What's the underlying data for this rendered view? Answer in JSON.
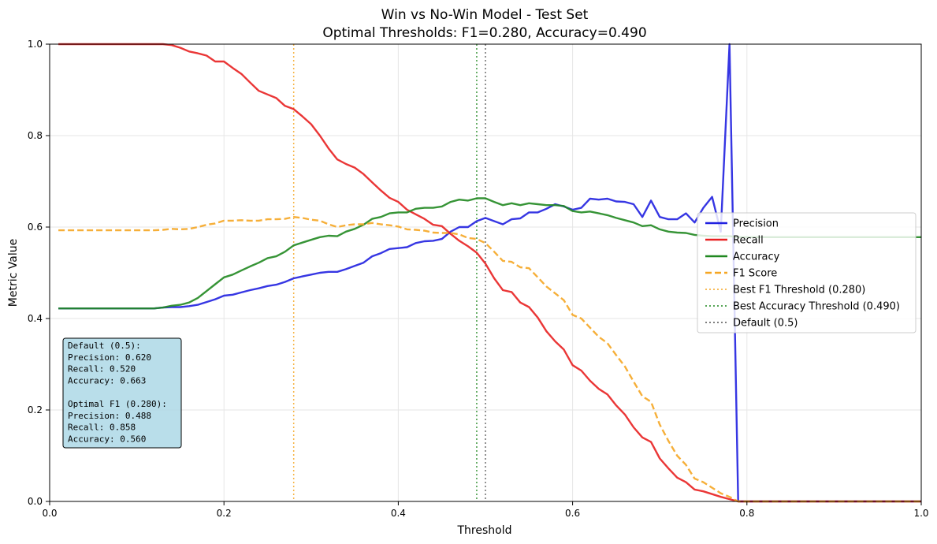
{
  "chart_data": {
    "type": "line",
    "title": "Win vs No-Win Model - Test Set",
    "subtitle": "Optimal Thresholds: F1=0.280, Accuracy=0.490",
    "xlabel": "Threshold",
    "ylabel": "Metric Value",
    "xlim": [
      0.0,
      1.0
    ],
    "ylim": [
      0.0,
      1.0
    ],
    "xticks": [
      "0.0",
      "0.2",
      "0.4",
      "0.6",
      "0.8",
      "1.0"
    ],
    "yticks": [
      "0.0",
      "0.2",
      "0.4",
      "0.6",
      "0.8",
      "1.0"
    ],
    "grid": true,
    "legend_position": "center-right",
    "x": [
      0.01,
      0.02,
      0.03,
      0.04,
      0.05,
      0.06,
      0.07,
      0.08,
      0.09,
      0.1,
      0.11,
      0.12,
      0.13,
      0.14,
      0.15,
      0.16,
      0.17,
      0.18,
      0.19,
      0.2,
      0.21,
      0.22,
      0.23,
      0.24,
      0.25,
      0.26,
      0.27,
      0.28,
      0.29,
      0.3,
      0.31,
      0.32,
      0.33,
      0.34,
      0.35,
      0.36,
      0.37,
      0.38,
      0.39,
      0.4,
      0.41,
      0.42,
      0.43,
      0.44,
      0.45,
      0.46,
      0.47,
      0.48,
      0.49,
      0.5,
      0.51,
      0.52,
      0.53,
      0.54,
      0.55,
      0.56,
      0.57,
      0.58,
      0.59,
      0.6,
      0.61,
      0.62,
      0.63,
      0.64,
      0.65,
      0.66,
      0.67,
      0.68,
      0.69,
      0.7,
      0.71,
      0.72,
      0.73,
      0.74,
      0.75,
      0.76,
      0.77,
      0.78,
      0.79,
      0.8,
      0.81,
      0.82,
      0.83,
      0.84,
      0.85,
      0.86,
      0.87,
      0.88,
      0.89,
      0.9,
      0.91,
      0.92,
      0.93,
      0.94,
      0.95,
      0.96,
      0.97,
      0.98,
      0.99
    ],
    "series": [
      {
        "name": "Precision",
        "color": "#2020e0",
        "style": "solid",
        "values": [
          0.422,
          0.422,
          0.422,
          0.422,
          0.422,
          0.422,
          0.422,
          0.422,
          0.422,
          0.422,
          0.422,
          0.422,
          0.424,
          0.425,
          0.425,
          0.427,
          0.43,
          0.436,
          0.442,
          0.45,
          0.452,
          0.457,
          0.462,
          0.466,
          0.471,
          0.474,
          0.48,
          0.488,
          0.492,
          0.496,
          0.5,
          0.502,
          0.502,
          0.508,
          0.515,
          0.522,
          0.536,
          0.543,
          0.552,
          0.554,
          0.556,
          0.565,
          0.569,
          0.57,
          0.574,
          0.59,
          0.6,
          0.6,
          0.613,
          0.62,
          0.613,
          0.606,
          0.617,
          0.619,
          0.632,
          0.632,
          0.64,
          0.65,
          0.645,
          0.638,
          0.642,
          0.662,
          0.66,
          0.662,
          0.656,
          0.655,
          0.65,
          0.622,
          0.658,
          0.622,
          0.617,
          0.617,
          0.63,
          0.61,
          0.642,
          0.666,
          0.59,
          1.0,
          0.0,
          0.0,
          0.0,
          0.0,
          0.0,
          0.0,
          0.0,
          0.0,
          0.0,
          0.0,
          0.0,
          0.0,
          0.0,
          0.0,
          0.0,
          0.0,
          0.0,
          0.0,
          0.0,
          0.0,
          0.0
        ]
      },
      {
        "name": "Recall",
        "color": "#e82020",
        "style": "solid",
        "values": [
          1.0,
          1.0,
          1.0,
          1.0,
          1.0,
          1.0,
          1.0,
          1.0,
          1.0,
          1.0,
          1.0,
          1.0,
          1.0,
          0.998,
          0.992,
          0.984,
          0.98,
          0.975,
          0.962,
          0.962,
          0.948,
          0.935,
          0.916,
          0.898,
          0.89,
          0.882,
          0.865,
          0.858,
          0.842,
          0.825,
          0.8,
          0.772,
          0.748,
          0.738,
          0.73,
          0.716,
          0.698,
          0.68,
          0.664,
          0.655,
          0.638,
          0.628,
          0.618,
          0.605,
          0.602,
          0.585,
          0.57,
          0.558,
          0.544,
          0.52,
          0.488,
          0.462,
          0.458,
          0.435,
          0.425,
          0.402,
          0.372,
          0.35,
          0.332,
          0.298,
          0.286,
          0.264,
          0.246,
          0.234,
          0.21,
          0.19,
          0.162,
          0.14,
          0.13,
          0.094,
          0.072,
          0.052,
          0.042,
          0.026,
          0.022,
          0.016,
          0.01,
          0.005,
          0.0,
          0.0,
          0.0,
          0.0,
          0.0,
          0.0,
          0.0,
          0.0,
          0.0,
          0.0,
          0.0,
          0.0,
          0.0,
          0.0,
          0.0,
          0.0,
          0.0,
          0.0,
          0.0,
          0.0,
          0.0
        ]
      },
      {
        "name": "Accuracy",
        "color": "#208820",
        "style": "solid",
        "values": [
          0.422,
          0.422,
          0.422,
          0.422,
          0.422,
          0.422,
          0.422,
          0.422,
          0.422,
          0.422,
          0.422,
          0.422,
          0.424,
          0.428,
          0.43,
          0.435,
          0.445,
          0.46,
          0.475,
          0.49,
          0.496,
          0.505,
          0.514,
          0.522,
          0.532,
          0.536,
          0.546,
          0.56,
          0.566,
          0.572,
          0.578,
          0.581,
          0.58,
          0.59,
          0.596,
          0.605,
          0.618,
          0.622,
          0.63,
          0.632,
          0.632,
          0.64,
          0.642,
          0.642,
          0.645,
          0.655,
          0.66,
          0.658,
          0.663,
          0.663,
          0.655,
          0.648,
          0.652,
          0.648,
          0.652,
          0.65,
          0.648,
          0.648,
          0.646,
          0.635,
          0.632,
          0.634,
          0.63,
          0.626,
          0.62,
          0.615,
          0.61,
          0.602,
          0.604,
          0.595,
          0.59,
          0.588,
          0.587,
          0.583,
          0.581,
          0.58,
          0.58,
          0.58,
          0.578,
          0.578,
          0.578,
          0.578,
          0.578,
          0.578,
          0.578,
          0.578,
          0.578,
          0.578,
          0.578,
          0.578,
          0.578,
          0.578,
          0.578,
          0.578,
          0.578,
          0.578,
          0.578,
          0.578,
          0.578
        ]
      },
      {
        "name": "F1 Score",
        "color": "#f5a623",
        "style": "dashed",
        "values": [
          0.593,
          0.593,
          0.593,
          0.593,
          0.593,
          0.593,
          0.593,
          0.593,
          0.593,
          0.593,
          0.593,
          0.593,
          0.594,
          0.596,
          0.595,
          0.596,
          0.6,
          0.605,
          0.608,
          0.614,
          0.614,
          0.615,
          0.614,
          0.614,
          0.617,
          0.617,
          0.618,
          0.622,
          0.62,
          0.616,
          0.614,
          0.606,
          0.6,
          0.604,
          0.606,
          0.606,
          0.609,
          0.606,
          0.604,
          0.601,
          0.595,
          0.594,
          0.592,
          0.588,
          0.587,
          0.587,
          0.584,
          0.576,
          0.574,
          0.565,
          0.546,
          0.526,
          0.524,
          0.512,
          0.51,
          0.49,
          0.47,
          0.455,
          0.44,
          0.408,
          0.4,
          0.38,
          0.36,
          0.346,
          0.32,
          0.295,
          0.262,
          0.23,
          0.218,
          0.168,
          0.132,
          0.1,
          0.08,
          0.05,
          0.042,
          0.03,
          0.018,
          0.01,
          0.0,
          0.0,
          0.0,
          0.0,
          0.0,
          0.0,
          0.0,
          0.0,
          0.0,
          0.0,
          0.0,
          0.0,
          0.0,
          0.0,
          0.0,
          0.0,
          0.0,
          0.0,
          0.0,
          0.0,
          0.0
        ]
      }
    ],
    "vlines": [
      {
        "name": "Best F1 Threshold (0.280)",
        "x": 0.28,
        "color": "#f5a623"
      },
      {
        "name": "Best Accuracy Threshold (0.490)",
        "x": 0.49,
        "color": "#208820"
      },
      {
        "name": "Default (0.5)",
        "x": 0.5,
        "color": "#555555"
      }
    ],
    "stats_box": {
      "lines": [
        "Default (0.5):",
        "Precision: 0.620",
        "Recall: 0.520",
        "Accuracy: 0.663",
        "",
        "Optimal F1 (0.280):",
        "Precision: 0.488",
        "Recall: 0.858",
        "Accuracy: 0.560"
      ],
      "background": "#add8e6"
    }
  }
}
